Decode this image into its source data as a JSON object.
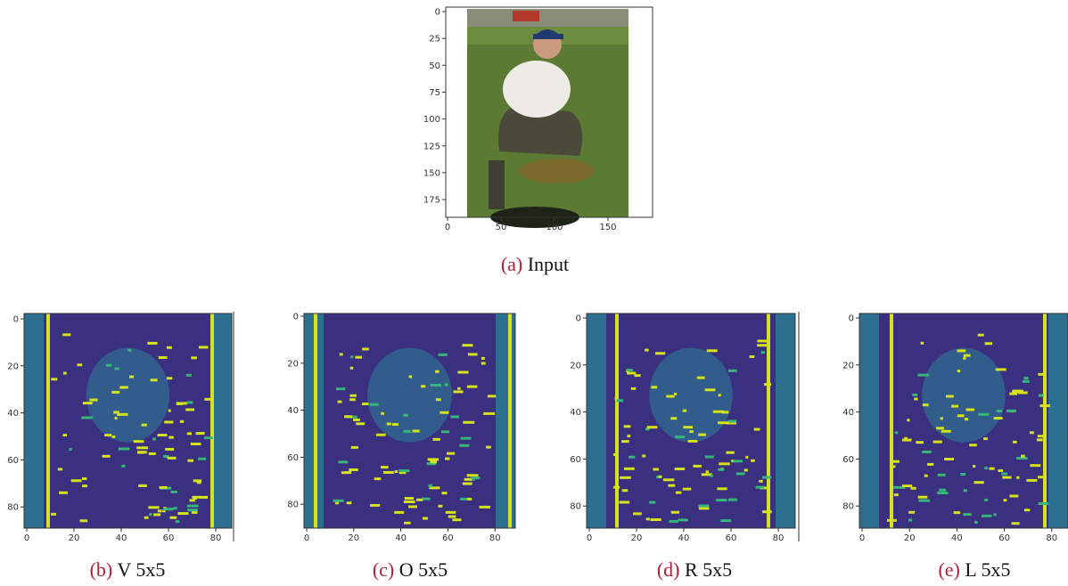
{
  "panels": [
    {
      "label": "(a)",
      "caption": "Input",
      "xticks": [
        0,
        50,
        100,
        150
      ],
      "yticks": [
        0,
        25,
        50,
        75,
        100,
        125,
        150,
        175
      ]
    },
    {
      "label": "(b)",
      "caption": "V 5x5",
      "xticks": [
        0,
        20,
        40,
        60,
        80
      ],
      "yticks": [
        0,
        20,
        40,
        60,
        80
      ]
    },
    {
      "label": "(c)",
      "caption": "O 5x5",
      "xticks": [
        0,
        20,
        40,
        60,
        80
      ],
      "yticks": [
        0,
        20,
        40,
        60,
        80
      ]
    },
    {
      "label": "(d)",
      "caption": "R 5x5",
      "xticks": [
        0,
        20,
        40,
        60,
        80
      ],
      "yticks": [
        0,
        20,
        40,
        60,
        80
      ]
    },
    {
      "label": "(e)",
      "caption": "L 5x5",
      "xticks": [
        0,
        20,
        40,
        60,
        80
      ],
      "yticks": [
        0,
        20,
        40,
        60,
        80
      ]
    }
  ]
}
